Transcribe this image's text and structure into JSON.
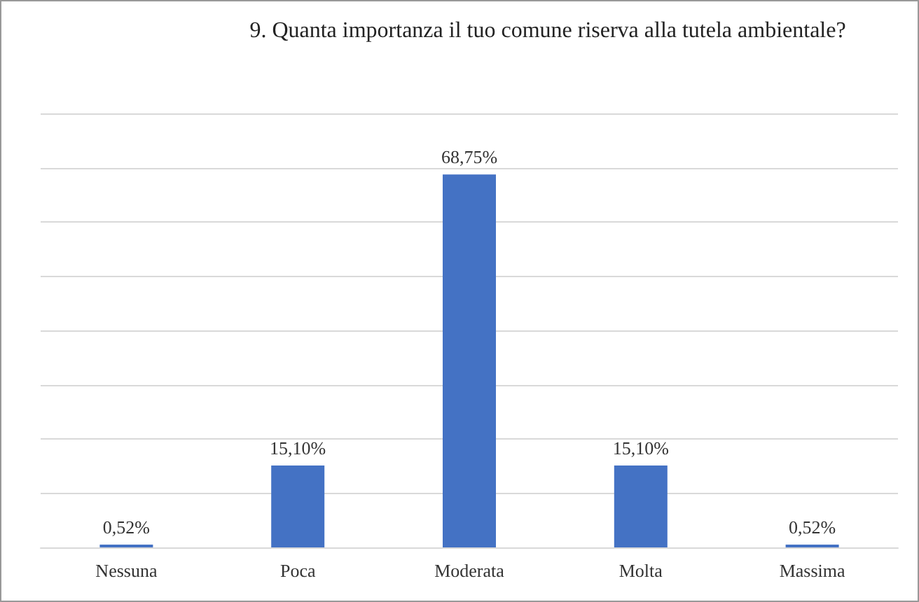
{
  "chart_data": {
    "type": "bar",
    "title": "9. Quanta importanza il tuo comune riserva alla tutela ambientale?",
    "categories": [
      "Nessuna",
      "Poca",
      "Moderata",
      "Molta",
      "Massima"
    ],
    "values": [
      0.52,
      15.1,
      68.75,
      15.1,
      0.52
    ],
    "value_labels": [
      "0,52%",
      "15,10%",
      "68,75%",
      "15,10%",
      "0,52%"
    ],
    "color": "#4472c4",
    "ylim": [
      0,
      80
    ],
    "yticks": [
      {
        "value": 0,
        "label": null
      },
      {
        "value": 10,
        "label": null
      },
      {
        "value": 20,
        "label": null
      },
      {
        "value": 30,
        "label": null
      },
      {
        "value": 40,
        "label": null
      },
      {
        "value": 50,
        "label": null
      },
      {
        "value": 60,
        "label": null
      },
      {
        "value": 70,
        "label": null
      },
      {
        "value": 80,
        "label": null
      }
    ],
    "grid": "y"
  }
}
